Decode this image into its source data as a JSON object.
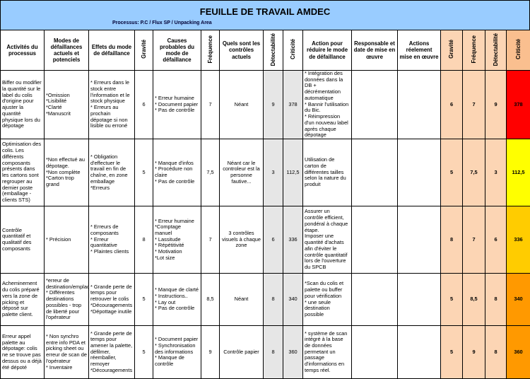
{
  "header": {
    "title": "FEUILLE DE TRAVAIL AMDEC",
    "process": "Processus: P.C / Flux SP / Unpacking Area"
  },
  "table": {
    "columns": [
      "Activités du processus",
      "Modes de défaillances actuels et potenciels",
      "Effets du mode de défaillance",
      "Gravité",
      "Causes probables du mode de défaillance",
      "Fréquence",
      "Quels sont les contrôles actuels",
      "Détectabilité",
      "Criticité",
      "Action pour réduire le mode de défaillance",
      "Responsable et date de mise en œuvre",
      "Actions réelement mise en œuvre",
      "Gravité",
      "Fréquence",
      "Détectabilité",
      "Criticité"
    ],
    "rows": [
      {
        "activite": "Biffer ou modifier la quantité sur le label du colis d'origine pour ajuster la quantité physique lors du dépotage",
        "modes": "*Omission\n*Lisibilité\n*Clarté\n*Manuscrit",
        "effets": "* Erreurs dans le stock entre l'information et le stock physique\n* Erreurs au prochain dépotage si non lisible ou erroné",
        "gravite": "6",
        "causes": "* Erreur humaine\n* Document papier\n* Pas de contrôle",
        "frequence": "7",
        "controles": "Néant",
        "detectabilite": "9",
        "criticite": "378",
        "action": "* Intégration des données dans la DB + décrémentation automatique\n* Bannir l'utilisation du Bic.\n* Réimpression d'un nouveau label après chaque dépotage",
        "gravite2": "6",
        "frequence2": "7",
        "detectabilite2": "9",
        "criticite2": "378",
        "color": "#ff0000"
      },
      {
        "activite": "Optimisation des colis. Les différents composants présents dans les cartons sont regrouper au dernier poste (emballage - clients STS)",
        "modes": "*Non effectué au dépotage.\n*Non complète\n*Carton trop grand",
        "effets": "* Obligation d'effectuer le travail en fin de chaîne, en zone emballage\n*Erreurs",
        "gravite": "5",
        "causes": "* Manque d'infos\n* Procédure non claire\n* Pas de contrôle",
        "frequence": "7,5",
        "controles": "Néant car le controleur est la personne fautive...",
        "detectabilite": "3",
        "criticite": "112,5",
        "action": "Utilisation de carton de différentes tailles selon la nature du produit",
        "gravite2": "5",
        "frequence2": "7,5",
        "detectabilite2": "3",
        "criticite2": "112,5",
        "color": "#ffff00"
      },
      {
        "activite": "Contrôle quantitatif et qualitatif des composants",
        "modes": "* Précision",
        "effets": "* Erreurs de composants\n* Erreur quantitative\n* Plaintes clients",
        "gravite": "8",
        "causes": "* Erreur humaine\n*Comptage manuel\n* Lassitude\n* Répétitivité\n* Motivation\n*Lot size",
        "frequence": "7",
        "controles": "3 contrôles visuels à chaque zone",
        "detectabilite": "6",
        "criticite": "336",
        "action": "Assurer un contrôle efficient, pondéral à chaque étape.\nImposer une quantité d'achats afin d'éviter le contrôle quantitatif lors de l'ouverture du SPCB",
        "gravite2": "8",
        "frequence2": "7",
        "detectabilite2": "6",
        "criticite2": "336",
        "color": "#ffcc00"
      },
      {
        "activite": "Acheminement du colis préparé vers la zone de picking et déposé sur palette client.",
        "modes": "*erreur de destination/emplacement\n* Différentes destinations possibles - trop de liberté pour l'opérateur",
        "effets": "* Grande perte de temps pour retrouver le colis\n*Découragements\n*Dépottage inutile",
        "gravite": "5",
        "causes": "* Manque de clarté\n* Instructions..\n* Lay out\n* Pas de contrôle",
        "frequence": "8,5",
        "controles": "Néant",
        "detectabilite": "8",
        "criticite": "340",
        "action": "*Scan du colis et palette ou buffer pour vérification\n* une seule destination possible",
        "gravite2": "5",
        "frequence2": "8,5",
        "detectabilite2": "8",
        "criticite2": "340",
        "color": "#ff9900"
      },
      {
        "activite": "Erreur appel palette au dépotage: colis ne se trouve pas dessus ou a déjà été dépoté",
        "modes": "* Non synchro entre info PDA et picking sheet ou erreur de scan de l'opérateur\n* Inventaire",
        "effets": "* Grande perte de temps pour amener la palette, défilmer, réemballer, remoyer\n*Découragements",
        "gravite": "5",
        "causes": "* Document papier\n* Synchronisation des informations\n* Manque de contrôle",
        "frequence": "9",
        "controles": "Contrôle papier",
        "detectabilite": "8",
        "criticite": "360",
        "action": "* système de scan intégré à la base de données permetant un passage d'informations en temps réel.",
        "gravite2": "5",
        "frequence2": "9",
        "detectabilite2": "8",
        "criticite2": "360",
        "color": "#ff9900"
      }
    ]
  }
}
